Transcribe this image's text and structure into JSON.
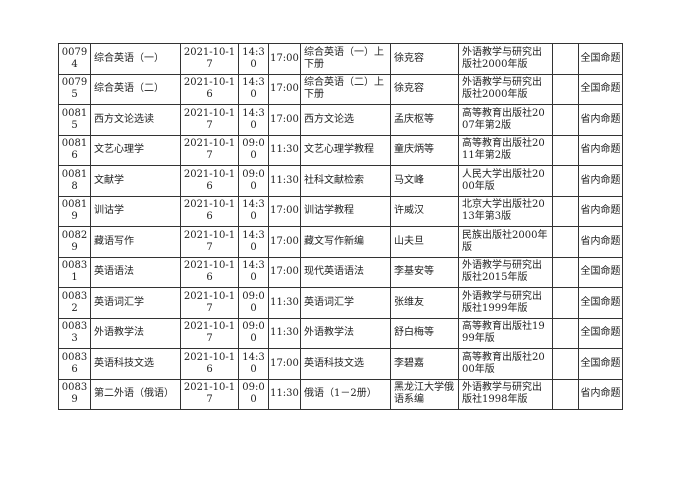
{
  "rows": [
    {
      "code": "00794",
      "course": "综合英语（一）",
      "date": "2021-10-17",
      "start": "14:30",
      "end": "17:00",
      "textbook": "综合英语（一）上下册",
      "author": "徐克容",
      "publisher": "外语教学与研究出版社2000年版",
      "note": "",
      "type": "全国命题"
    },
    {
      "code": "00795",
      "course": "综合英语（二）",
      "date": "2021-10-16",
      "start": "14:30",
      "end": "17:00",
      "textbook": "综合英语（二）上下册",
      "author": "徐克容",
      "publisher": "外语教学与研究出版社2000年版",
      "note": "",
      "type": "全国命题"
    },
    {
      "code": "00815",
      "course": "西方文论选读",
      "date": "2021-10-17",
      "start": "14:30",
      "end": "17:00",
      "textbook": "西方文论选",
      "author": "孟庆枢等",
      "publisher": "高等教育出版社2007年第2版",
      "note": "",
      "type": "省内命题"
    },
    {
      "code": "00816",
      "course": "文艺心理学",
      "date": "2021-10-17",
      "start": "09:00",
      "end": "11:30",
      "textbook": "文艺心理学教程",
      "author": "童庆炳等",
      "publisher": "高等教育出版社2011年第2版",
      "note": "",
      "type": "省内命题"
    },
    {
      "code": "00818",
      "course": "文献学",
      "date": "2021-10-16",
      "start": "09:00",
      "end": "11:30",
      "textbook": "社科文献检索",
      "author": "马文峰",
      "publisher": "人民大学出版社2000年版",
      "note": "",
      "type": "省内命题"
    },
    {
      "code": "00819",
      "course": "训诂学",
      "date": "2021-10-16",
      "start": "14:30",
      "end": "17:00",
      "textbook": "训诂学教程",
      "author": "许威汉",
      "publisher": "北京大学出版社2013年第3版",
      "note": "",
      "type": "省内命题"
    },
    {
      "code": "00829",
      "course": "藏语写作",
      "date": "2021-10-17",
      "start": "14:30",
      "end": "17:00",
      "textbook": "藏文写作新编",
      "author": "山夫旦",
      "publisher": "民族出版社2000年版",
      "note": "",
      "type": "省内命题"
    },
    {
      "code": "00831",
      "course": "英语语法",
      "date": "2021-10-16",
      "start": "14:30",
      "end": "17:00",
      "textbook": "现代英语语法",
      "author": "李基安等",
      "publisher": "外语教学与研究出版社2015年版",
      "note": "",
      "type": "全国命题"
    },
    {
      "code": "00832",
      "course": "英语词汇学",
      "date": "2021-10-17",
      "start": "09:00",
      "end": "11:30",
      "textbook": "英语词汇学",
      "author": "张维友",
      "publisher": "外语教学与研究出版社1999年版",
      "note": "",
      "type": "全国命题"
    },
    {
      "code": "00833",
      "course": "外语教学法",
      "date": "2021-10-17",
      "start": "09:00",
      "end": "11:30",
      "textbook": "外语教学法",
      "author": "舒白梅等",
      "publisher": "高等教育出版社1999年版",
      "note": "",
      "type": "全国命题"
    },
    {
      "code": "00836",
      "course": "英语科技文选",
      "date": "2021-10-16",
      "start": "14:30",
      "end": "17:00",
      "textbook": "英语科技文选",
      "author": "李碧嘉",
      "publisher": "高等教育出版社2000年版",
      "note": "",
      "type": "全国命题"
    },
    {
      "code": "00839",
      "course": "第二外语（俄语）",
      "date": "2021-10-17",
      "start": "09:00",
      "end": "11:30",
      "textbook": "俄语（1－2册）",
      "author": "黑龙江大学俄语系编",
      "publisher": "外语教学与研究出版社1998年版",
      "note": "",
      "type": "省内命题"
    }
  ]
}
